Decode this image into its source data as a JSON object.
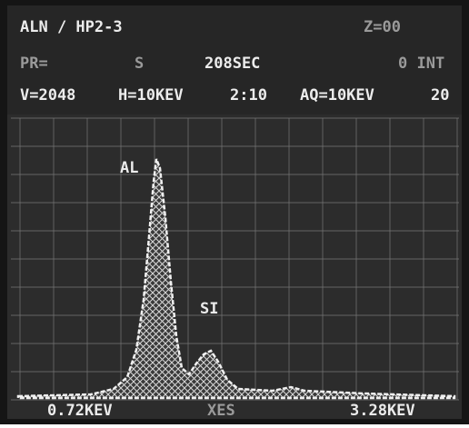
{
  "header": {
    "title": "ALN / HP2-3",
    "z": "Z=00"
  },
  "status": {
    "pr": "PR=",
    "s": "S",
    "time": "208SEC",
    "int": "0 INT"
  },
  "settings": {
    "v": "V=2048",
    "h": "H=10KEV",
    "ratio": "2:10",
    "aq": "AQ=10KEV",
    "aq_n": "20"
  },
  "peaks": [
    {
      "label": "AL"
    },
    {
      "label": "SI"
    }
  ],
  "footer": {
    "left": "0.72KEV",
    "center": "XES",
    "right": "3.28KEV"
  }
}
